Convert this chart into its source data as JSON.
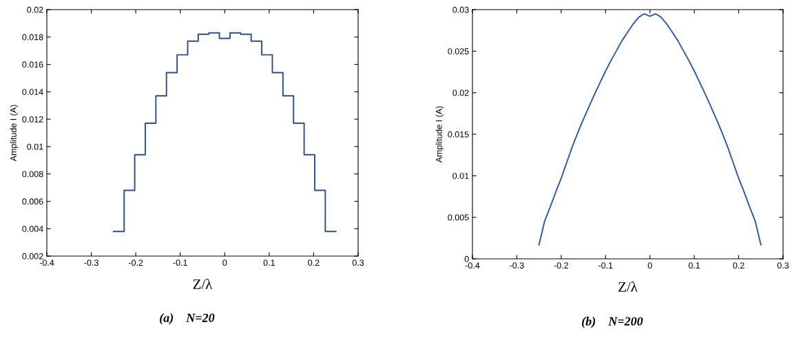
{
  "chart_data": [
    {
      "type": "step",
      "xlabel": "Z/λ",
      "ylabel": "Amplitude I (A)",
      "annotations": [
        "(a)    N=20"
      ],
      "x": [
        -0.25,
        -0.2262,
        -0.2024,
        -0.1786,
        -0.1548,
        -0.131,
        -0.1071,
        -0.0833,
        -0.0595,
        -0.0357,
        -0.0119,
        0.0119,
        0.0357,
        0.0595,
        0.0833,
        0.1071,
        0.131,
        0.1548,
        0.1786,
        0.2024,
        0.2262,
        0.25
      ],
      "series": [
        {
          "color": "#2b4f8f",
          "values": [
            0.0038,
            0.0068,
            0.0094,
            0.0117,
            0.0137,
            0.0154,
            0.0167,
            0.0177,
            0.0182,
            0.0183,
            0.0179,
            0.0183,
            0.0182,
            0.0177,
            0.0167,
            0.0154,
            0.0137,
            0.0117,
            0.0094,
            0.0068,
            0.0038,
            0.0038
          ]
        }
      ],
      "xlim": [
        -0.4,
        0.3
      ],
      "xticks": [
        -0.4,
        -0.3,
        -0.2,
        -0.1,
        0,
        0.1,
        0.2,
        0.3
      ],
      "ylim": [
        0.002,
        0.02
      ],
      "yticks": [
        0.002,
        0.004,
        0.006,
        0.008,
        0.01,
        0.012,
        0.014,
        0.016,
        0.018,
        0.02
      ],
      "grid": false
    },
    {
      "type": "line",
      "xlabel": "Z/λ",
      "ylabel": "Amplitude I (A)",
      "annotations": [
        "(b)    N=200"
      ],
      "x": [
        -0.25,
        -0.2375,
        -0.225,
        -0.2125,
        -0.2,
        -0.1875,
        -0.175,
        -0.1625,
        -0.15,
        -0.1375,
        -0.125,
        -0.1125,
        -0.1,
        -0.0875,
        -0.075,
        -0.0625,
        -0.05,
        -0.0375,
        -0.025,
        -0.0125,
        0,
        0.0125,
        0.025,
        0.0375,
        0.05,
        0.0625,
        0.075,
        0.0875,
        0.1,
        0.1125,
        0.125,
        0.1375,
        0.15,
        0.1625,
        0.175,
        0.1875,
        0.2,
        0.2125,
        0.225,
        0.2375,
        0.25
      ],
      "series": [
        {
          "color": "#2b5aa8",
          "values": [
            0.0017,
            0.0045,
            0.0062,
            0.008,
            0.0097,
            0.0116,
            0.0135,
            0.0152,
            0.0168,
            0.0183,
            0.0198,
            0.0212,
            0.0226,
            0.0239,
            0.0251,
            0.0263,
            0.0273,
            0.0283,
            0.0291,
            0.0295,
            0.0292,
            0.0295,
            0.0291,
            0.0283,
            0.0273,
            0.0263,
            0.0251,
            0.0239,
            0.0226,
            0.0212,
            0.0198,
            0.0183,
            0.0168,
            0.0152,
            0.0135,
            0.0116,
            0.0097,
            0.008,
            0.0062,
            0.0045,
            0.0017
          ]
        }
      ],
      "xlim": [
        -0.4,
        0.3
      ],
      "xticks": [
        -0.4,
        -0.3,
        -0.2,
        -0.1,
        0,
        0.1,
        0.2,
        0.3
      ],
      "ylim": [
        0,
        0.03
      ],
      "yticks": [
        0,
        0.005,
        0.01,
        0.015,
        0.02,
        0.025,
        0.03
      ],
      "grid": false
    }
  ]
}
